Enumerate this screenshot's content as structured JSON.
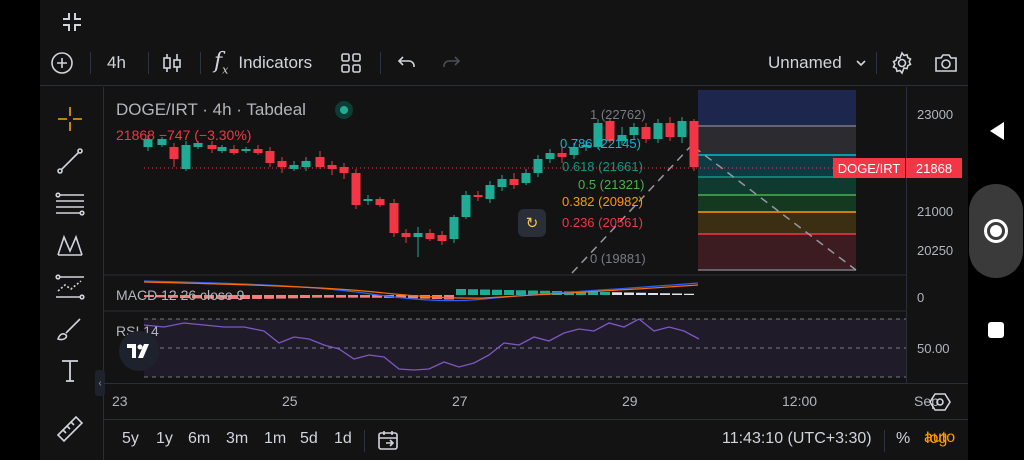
{
  "toolbar": {
    "interval": "4h",
    "indicators_label": "Indicators",
    "layout_name": "Unnamed"
  },
  "legend": {
    "title": "DOGE/IRT · 4h · Tabdeal",
    "values": "21868  −747 (−3.30%)"
  },
  "price_scale": {
    "labels": [
      "23000",
      "21000",
      "20250",
      "0",
      "50.00"
    ],
    "current_price": "21868",
    "symbol": "DOGE/IRT"
  },
  "fib_levels": [
    {
      "label": "1 (22762)",
      "color": "#787b86"
    },
    {
      "label": "0.786 (22145)",
      "color": "#00bcd4"
    },
    {
      "label": "0.618 (21661)",
      "color": "#089981"
    },
    {
      "label": "0.5 (21321)",
      "color": "#4caf50"
    },
    {
      "label": "0.382 (20982)",
      "color": "#ff9800"
    },
    {
      "label": "0.236 (20561)",
      "color": "#f23645"
    },
    {
      "label": "0 (19881)",
      "color": "#787b86"
    }
  ],
  "indicators": {
    "macd_label": "MACD  12 26 close 9",
    "rsi_label": "RSI  14"
  },
  "time_scale": {
    "labels": [
      "23",
      "25",
      "27",
      "29",
      "12:00",
      "Sep"
    ]
  },
  "bottom_bar": {
    "ranges": [
      "5y",
      "1y",
      "6m",
      "3m",
      "1m",
      "5d",
      "1d"
    ],
    "clock": "11:43:10 (UTC+3:30)",
    "percent": "%",
    "log": "log",
    "auto": "auto"
  },
  "colors": {
    "up": "#22ab94",
    "down": "#f23645",
    "background": "#131313",
    "rsi_line": "#7e57c2"
  }
}
